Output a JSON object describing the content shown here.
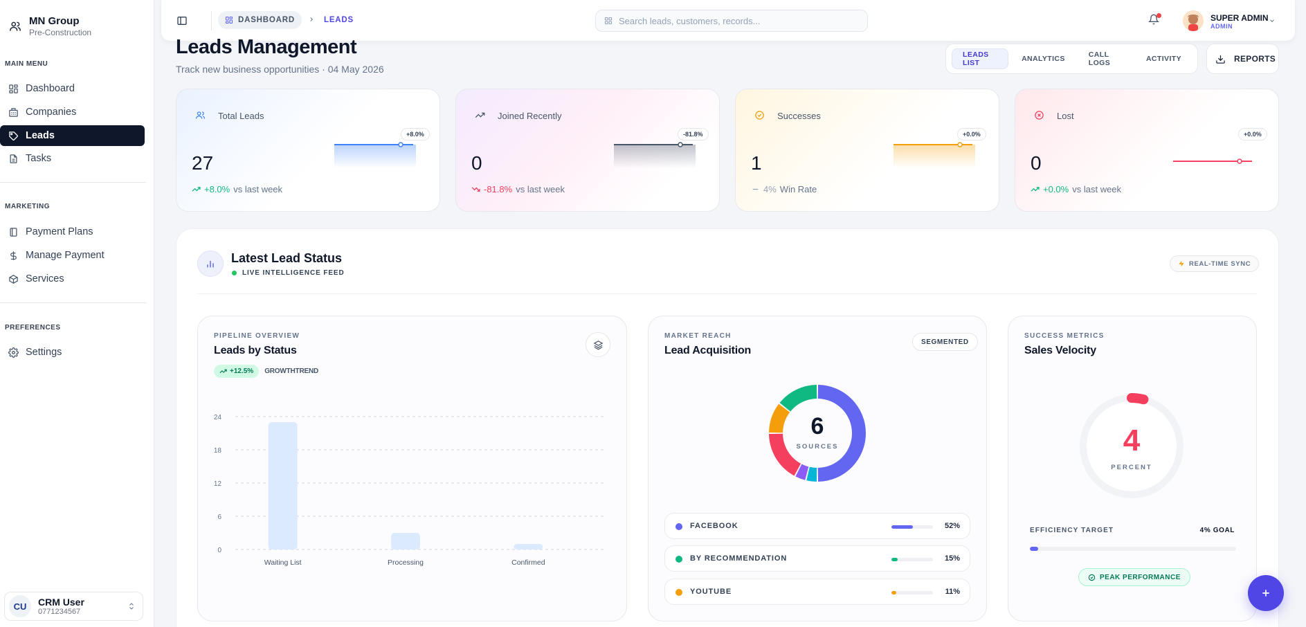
{
  "brand": {
    "title": "MN Group",
    "subtitle": "Pre-Construction"
  },
  "sidebar": {
    "sections": [
      {
        "label": "MAIN MENU",
        "items": [
          {
            "label": "Dashboard",
            "icon": "dashboard-icon"
          },
          {
            "label": "Companies",
            "icon": "building-icon"
          },
          {
            "label": "Leads",
            "icon": "tag-icon",
            "active": true
          },
          {
            "label": "Tasks",
            "icon": "document-icon"
          }
        ]
      },
      {
        "label": "MARKETING",
        "items": [
          {
            "label": "Payment Plans",
            "icon": "book-icon"
          },
          {
            "label": "Manage Payment",
            "icon": "dollar-icon"
          },
          {
            "label": "Services",
            "icon": "box-icon"
          }
        ]
      },
      {
        "label": "PREFERENCES",
        "items": [
          {
            "label": "Settings",
            "icon": "gear-icon"
          }
        ]
      }
    ],
    "user": {
      "initials": "CU",
      "name": "CRM User",
      "phone": "0771234567"
    }
  },
  "topbar": {
    "breadcrumb_root": "DASHBOARD",
    "breadcrumb_current": "LEADS",
    "search_placeholder": "Search leads, customers, records...",
    "user_name": "SUPER ADMIN",
    "user_role": "ADMIN"
  },
  "header": {
    "title": "Leads Management",
    "subtitle": "Track new business opportunities · 04 May 2026",
    "tabs": [
      "LEADS LIST",
      "ANALYTICS",
      "CALL LOGS",
      "ACTIVITY"
    ],
    "reports_label": "REPORTS"
  },
  "stats": [
    {
      "label": "Total Leads",
      "value": "27",
      "change": "+8.0%",
      "suffix": "vs last week",
      "tag": "+8.0%",
      "color": "#3b82f6",
      "trend": "up"
    },
    {
      "label": "Joined Recently",
      "value": "0",
      "change": "-81.8%",
      "suffix": "vs last week",
      "tag": "-81.8%",
      "color": "#475569",
      "trend": "down"
    },
    {
      "label": "Successes",
      "value": "1",
      "change": "4%",
      "suffix": "Win Rate",
      "tag": "+0.0%",
      "color": "#f59e0b",
      "trend": "flat"
    },
    {
      "label": "Lost",
      "value": "0",
      "change": "+0.0%",
      "suffix": "vs last week",
      "tag": "+0.0%",
      "color": "#f43f5e",
      "trend": "up"
    }
  ],
  "lead_status": {
    "title": "Latest Lead Status",
    "live_label": "LIVE INTELLIGENCE FEED",
    "sync_label": "REAL-TIME SYNC"
  },
  "pipeline": {
    "eyebrow": "PIPELINE OVERVIEW",
    "title": "Leads by Status",
    "growth_value": "+12.5%",
    "growth_label": "GROWTHTREND"
  },
  "chart_data": {
    "type": "bar",
    "categories": [
      "Waiting List",
      "Processing",
      "Confirmed"
    ],
    "values": [
      23,
      3,
      1
    ],
    "yticks": [
      0,
      6,
      12,
      18,
      24
    ],
    "ylim": [
      0,
      24
    ],
    "grid": true
  },
  "acquisition": {
    "eyebrow": "MARKET REACH",
    "title": "Lead Acquisition",
    "segmented_label": "SEGMENTED",
    "center_value": "6",
    "center_label": "SOURCES",
    "sources": [
      {
        "name": "FACEBOOK",
        "pct": "52%",
        "value": 52,
        "color": "#6366f1"
      },
      {
        "name": "BY RECOMMENDATION",
        "pct": "15%",
        "value": 15,
        "color": "#10b981"
      },
      {
        "name": "YOUTUBE",
        "pct": "11%",
        "value": 11,
        "color": "#f59e0b"
      }
    ],
    "donut_segments": [
      {
        "value": 52,
        "color": "#6366f1"
      },
      {
        "value": 4,
        "color": "#06b6d4"
      },
      {
        "value": 4,
        "color": "#8b5cf6"
      },
      {
        "value": 18,
        "color": "#f43f5e"
      },
      {
        "value": 11,
        "color": "#f59e0b"
      },
      {
        "value": 15,
        "color": "#10b981"
      }
    ]
  },
  "velocity": {
    "eyebrow": "SUCCESS METRICS",
    "title": "Sales Velocity",
    "value": "4",
    "value_label": "PERCENT",
    "progress": 4,
    "efficiency_label": "EFFICIENCY TARGET",
    "goal_label": "4% GOAL",
    "peak_label": "PEAK PERFORMANCE"
  }
}
